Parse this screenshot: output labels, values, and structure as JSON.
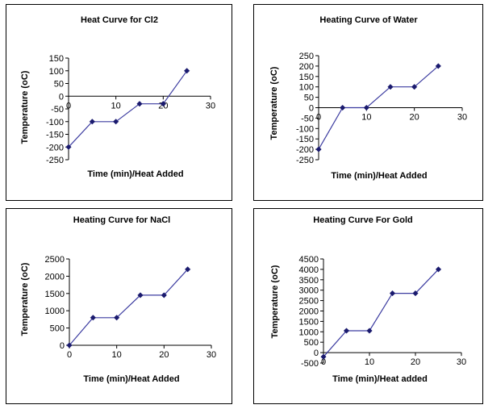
{
  "colors": {
    "line": "#3c3ca0",
    "marker": "#1a1a6e",
    "axis": "#000000"
  },
  "chart_data": [
    {
      "type": "line",
      "title": "Heat Curve for Cl2",
      "xlabel": "Time (min)/Heat Added",
      "ylabel": "Temperature (oC)",
      "xlim": [
        0,
        30
      ],
      "ylim": [
        -250,
        150
      ],
      "xticks": [
        0,
        10,
        20,
        30
      ],
      "yticks": [
        150,
        100,
        50,
        0,
        -50,
        -100,
        -150,
        -200,
        -250
      ],
      "x_axis_at_zero": true,
      "grid": false,
      "legend": "none",
      "series": [
        {
          "x": [
            0,
            5,
            10,
            15,
            20,
            25
          ],
          "y": [
            -200,
            -100,
            -100,
            -30,
            -30,
            100
          ]
        }
      ]
    },
    {
      "type": "line",
      "title": "Heating Curve of Water",
      "xlabel": "Time (min)/Heat Added",
      "ylabel": "Temperature (oC)",
      "xlim": [
        0,
        30
      ],
      "ylim": [
        -250,
        250
      ],
      "xticks": [
        0,
        10,
        20,
        30
      ],
      "yticks": [
        250,
        200,
        150,
        100,
        50,
        0,
        -50,
        -100,
        -150,
        -200,
        -250
      ],
      "x_axis_at_zero": true,
      "grid": false,
      "legend": "none",
      "series": [
        {
          "x": [
            0,
            5,
            10,
            15,
            20,
            25
          ],
          "y": [
            -200,
            0,
            0,
            100,
            100,
            200
          ]
        }
      ]
    },
    {
      "type": "line",
      "title": "Heating Curve for NaCl",
      "xlabel": "Time (min)/Heat Added",
      "ylabel": "Temperature (oC)",
      "xlim": [
        0,
        30
      ],
      "ylim": [
        0,
        2500
      ],
      "xticks": [
        0,
        10,
        20,
        30
      ],
      "yticks": [
        2500,
        2000,
        1500,
        1000,
        500,
        0
      ],
      "x_axis_at_zero": true,
      "grid": false,
      "legend": "none",
      "series": [
        {
          "x": [
            0,
            5,
            10,
            15,
            20,
            25
          ],
          "y": [
            0,
            800,
            800,
            1450,
            1450,
            2200
          ]
        }
      ]
    },
    {
      "type": "line",
      "title": "Heating Curve For Gold",
      "xlabel": "Time (min)/Heat added",
      "ylabel": "Temperature (oC)",
      "xlim": [
        0,
        30
      ],
      "ylim": [
        -500,
        4500
      ],
      "xticks": [
        0,
        10,
        20,
        30
      ],
      "yticks": [
        4500,
        4000,
        3500,
        3000,
        2500,
        2000,
        1500,
        1000,
        500,
        0,
        -500
      ],
      "x_axis_at_zero": true,
      "grid": false,
      "legend": "none",
      "series": [
        {
          "x": [
            0,
            5,
            10,
            15,
            20,
            25
          ],
          "y": [
            -200,
            1050,
            1050,
            2850,
            2850,
            4000
          ]
        }
      ]
    }
  ]
}
